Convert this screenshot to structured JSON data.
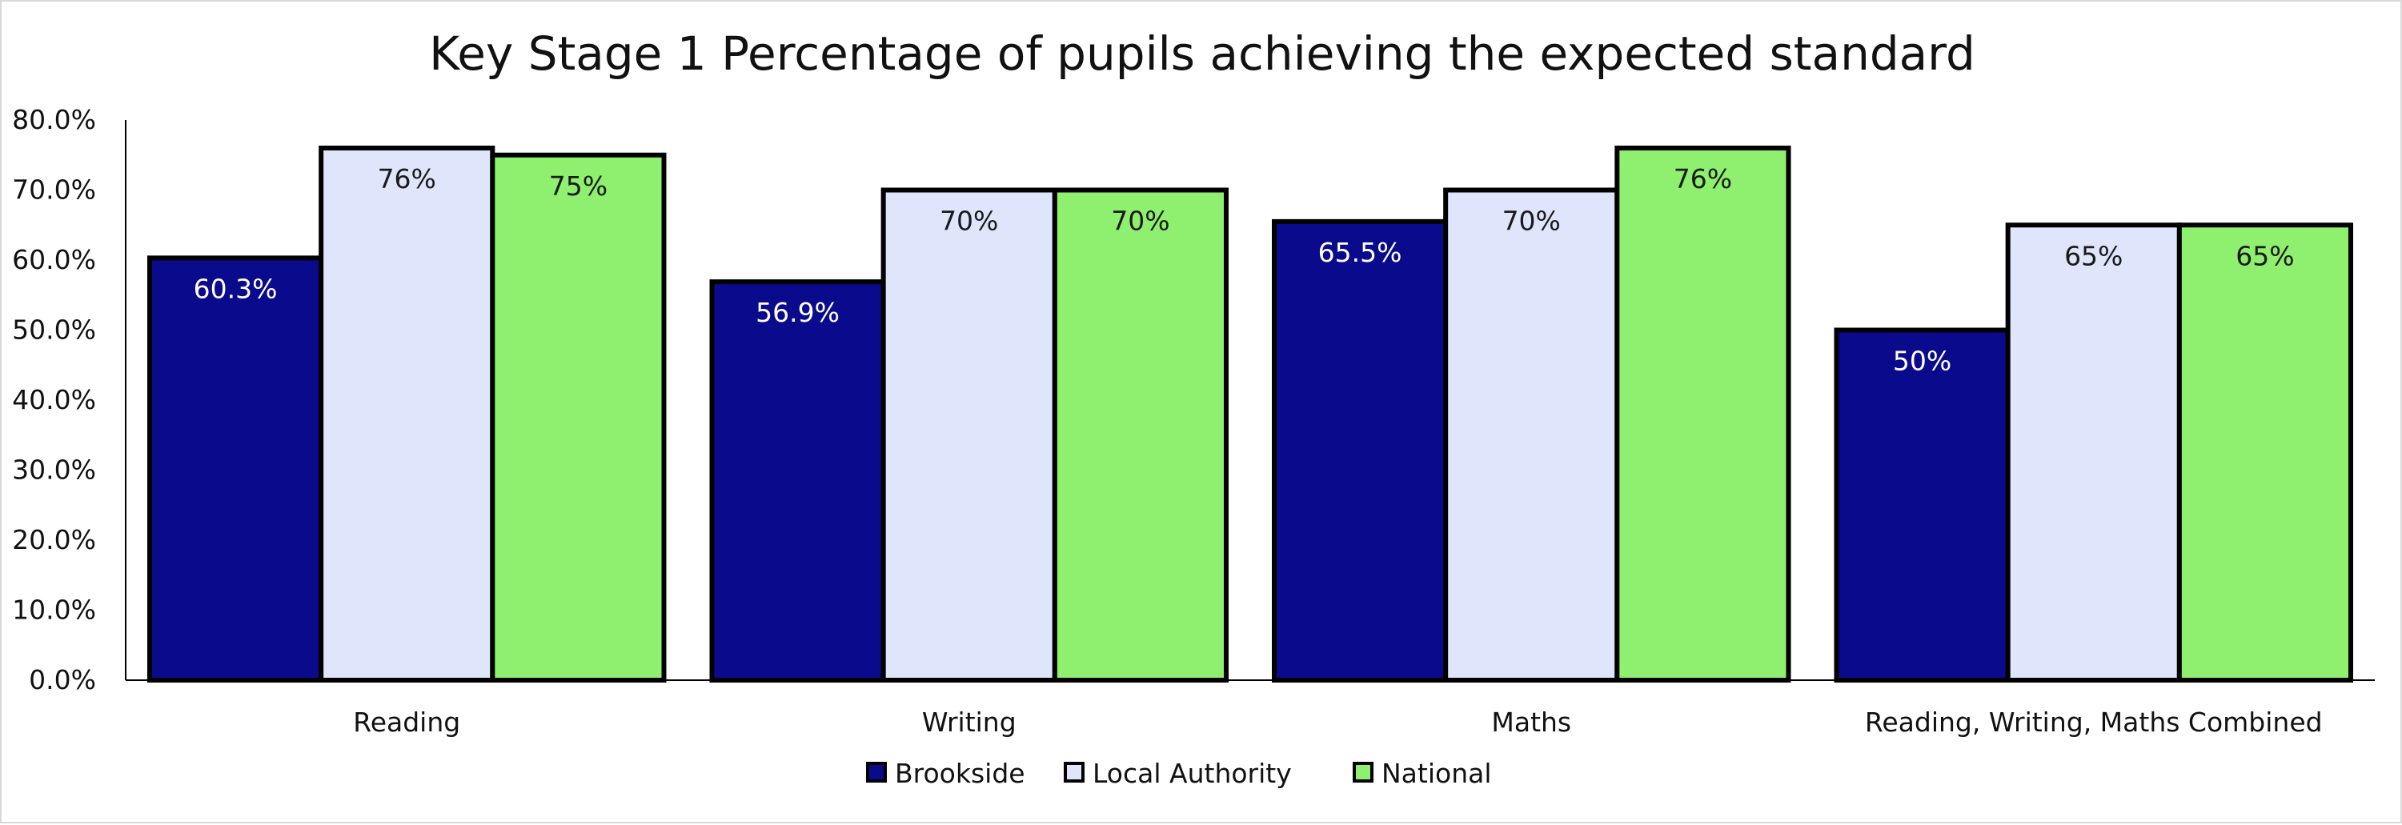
{
  "chart_data": {
    "type": "bar",
    "title": "Key Stage 1 Percentage of pupils achieving the expected standard",
    "xlabel": "",
    "ylabel": "",
    "ylim": [
      0,
      80
    ],
    "y_ticks": [
      0,
      10,
      20,
      30,
      40,
      50,
      60,
      70,
      80
    ],
    "y_tick_labels": [
      "0.0%",
      "10.0%",
      "20.0%",
      "30.0%",
      "40.0%",
      "50.0%",
      "60.0%",
      "70.0%",
      "80.0%"
    ],
    "categories": [
      "Reading",
      "Writing",
      "Maths",
      "Reading, Writing, Maths Combined"
    ],
    "series": [
      {
        "name": "Brookside",
        "color": "#0a0a8c",
        "values": [
          60.3,
          56.9,
          65.5,
          50
        ],
        "labels": [
          "60.3%",
          "56.9%",
          "65.5%",
          "50%"
        ]
      },
      {
        "name": "Local Authority",
        "color": "#dfe6fb",
        "values": [
          76,
          70,
          70,
          65
        ],
        "labels": [
          "76%",
          "70%",
          "70%",
          "65%"
        ]
      },
      {
        "name": "National",
        "color": "#8fef6e",
        "values": [
          75,
          70,
          76,
          65
        ],
        "labels": [
          "75%",
          "70%",
          "76%",
          "65%"
        ]
      }
    ],
    "legend_position": "bottom-center",
    "grid": false
  }
}
